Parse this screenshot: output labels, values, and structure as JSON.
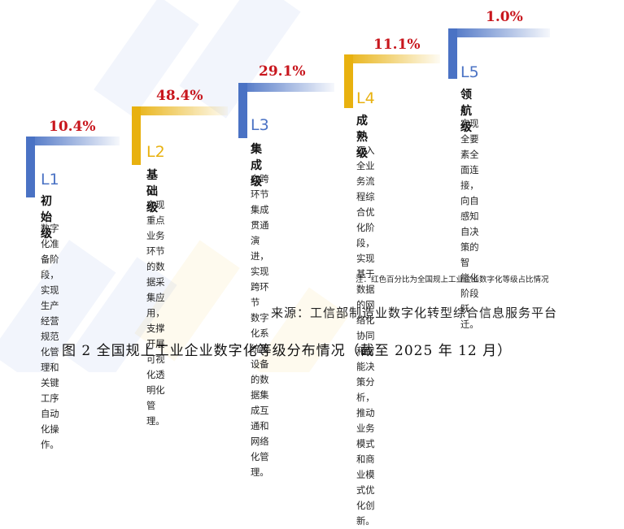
{
  "levels": [
    {
      "pct": "10.4%",
      "code": "L1",
      "name": "初始级",
      "desc": [
        "数字化准备阶段，",
        "实现生产经营规范",
        "化管理和关键工序",
        "自动化操作。"
      ],
      "color": "#4a72c4"
    },
    {
      "pct": "48.4%",
      "code": "L2",
      "name": "基础级",
      "desc": [
        "实现重点业务环节",
        "的数据采集应用，",
        "支撑开展可视化透",
        "明化管理。"
      ],
      "color": "#e8b10f"
    },
    {
      "pct": "29.1%",
      "code": "L3",
      "name": "集成级",
      "desc": [
        "向跨环节集成贯通",
        "演进，实现跨环节",
        "数字化系统及设备",
        "的数据集成互通和",
        "网络化管理。"
      ],
      "color": "#4a72c4"
    },
    {
      "pct": "11.1%",
      "code": "L4",
      "name": "成熟级",
      "desc": [
        "迈入全业务流程综",
        "合优化阶段，实现",
        "基于数据的网络化",
        "协同和智能决策分",
        "析，推动业务模式",
        "和商业模式优化创",
        "新。"
      ],
      "color": "#e8b10f"
    },
    {
      "pct": "1.0%",
      "code": "L5",
      "name": "领航级",
      "desc": [
        "实现全要素全面连接，",
        "向自感知自决策的智",
        "能化阶段跃迁。"
      ],
      "color": "#4a72c4"
    }
  ],
  "note": "注：红色百分比为全国规上工业企业数字化等级占比情况",
  "source": "来源：工信部制造业数字化转型综合信息服务平台",
  "caption": "图 2 全国规上工业企业数字化等级分布情况（截至 2025 年 12 月）"
}
